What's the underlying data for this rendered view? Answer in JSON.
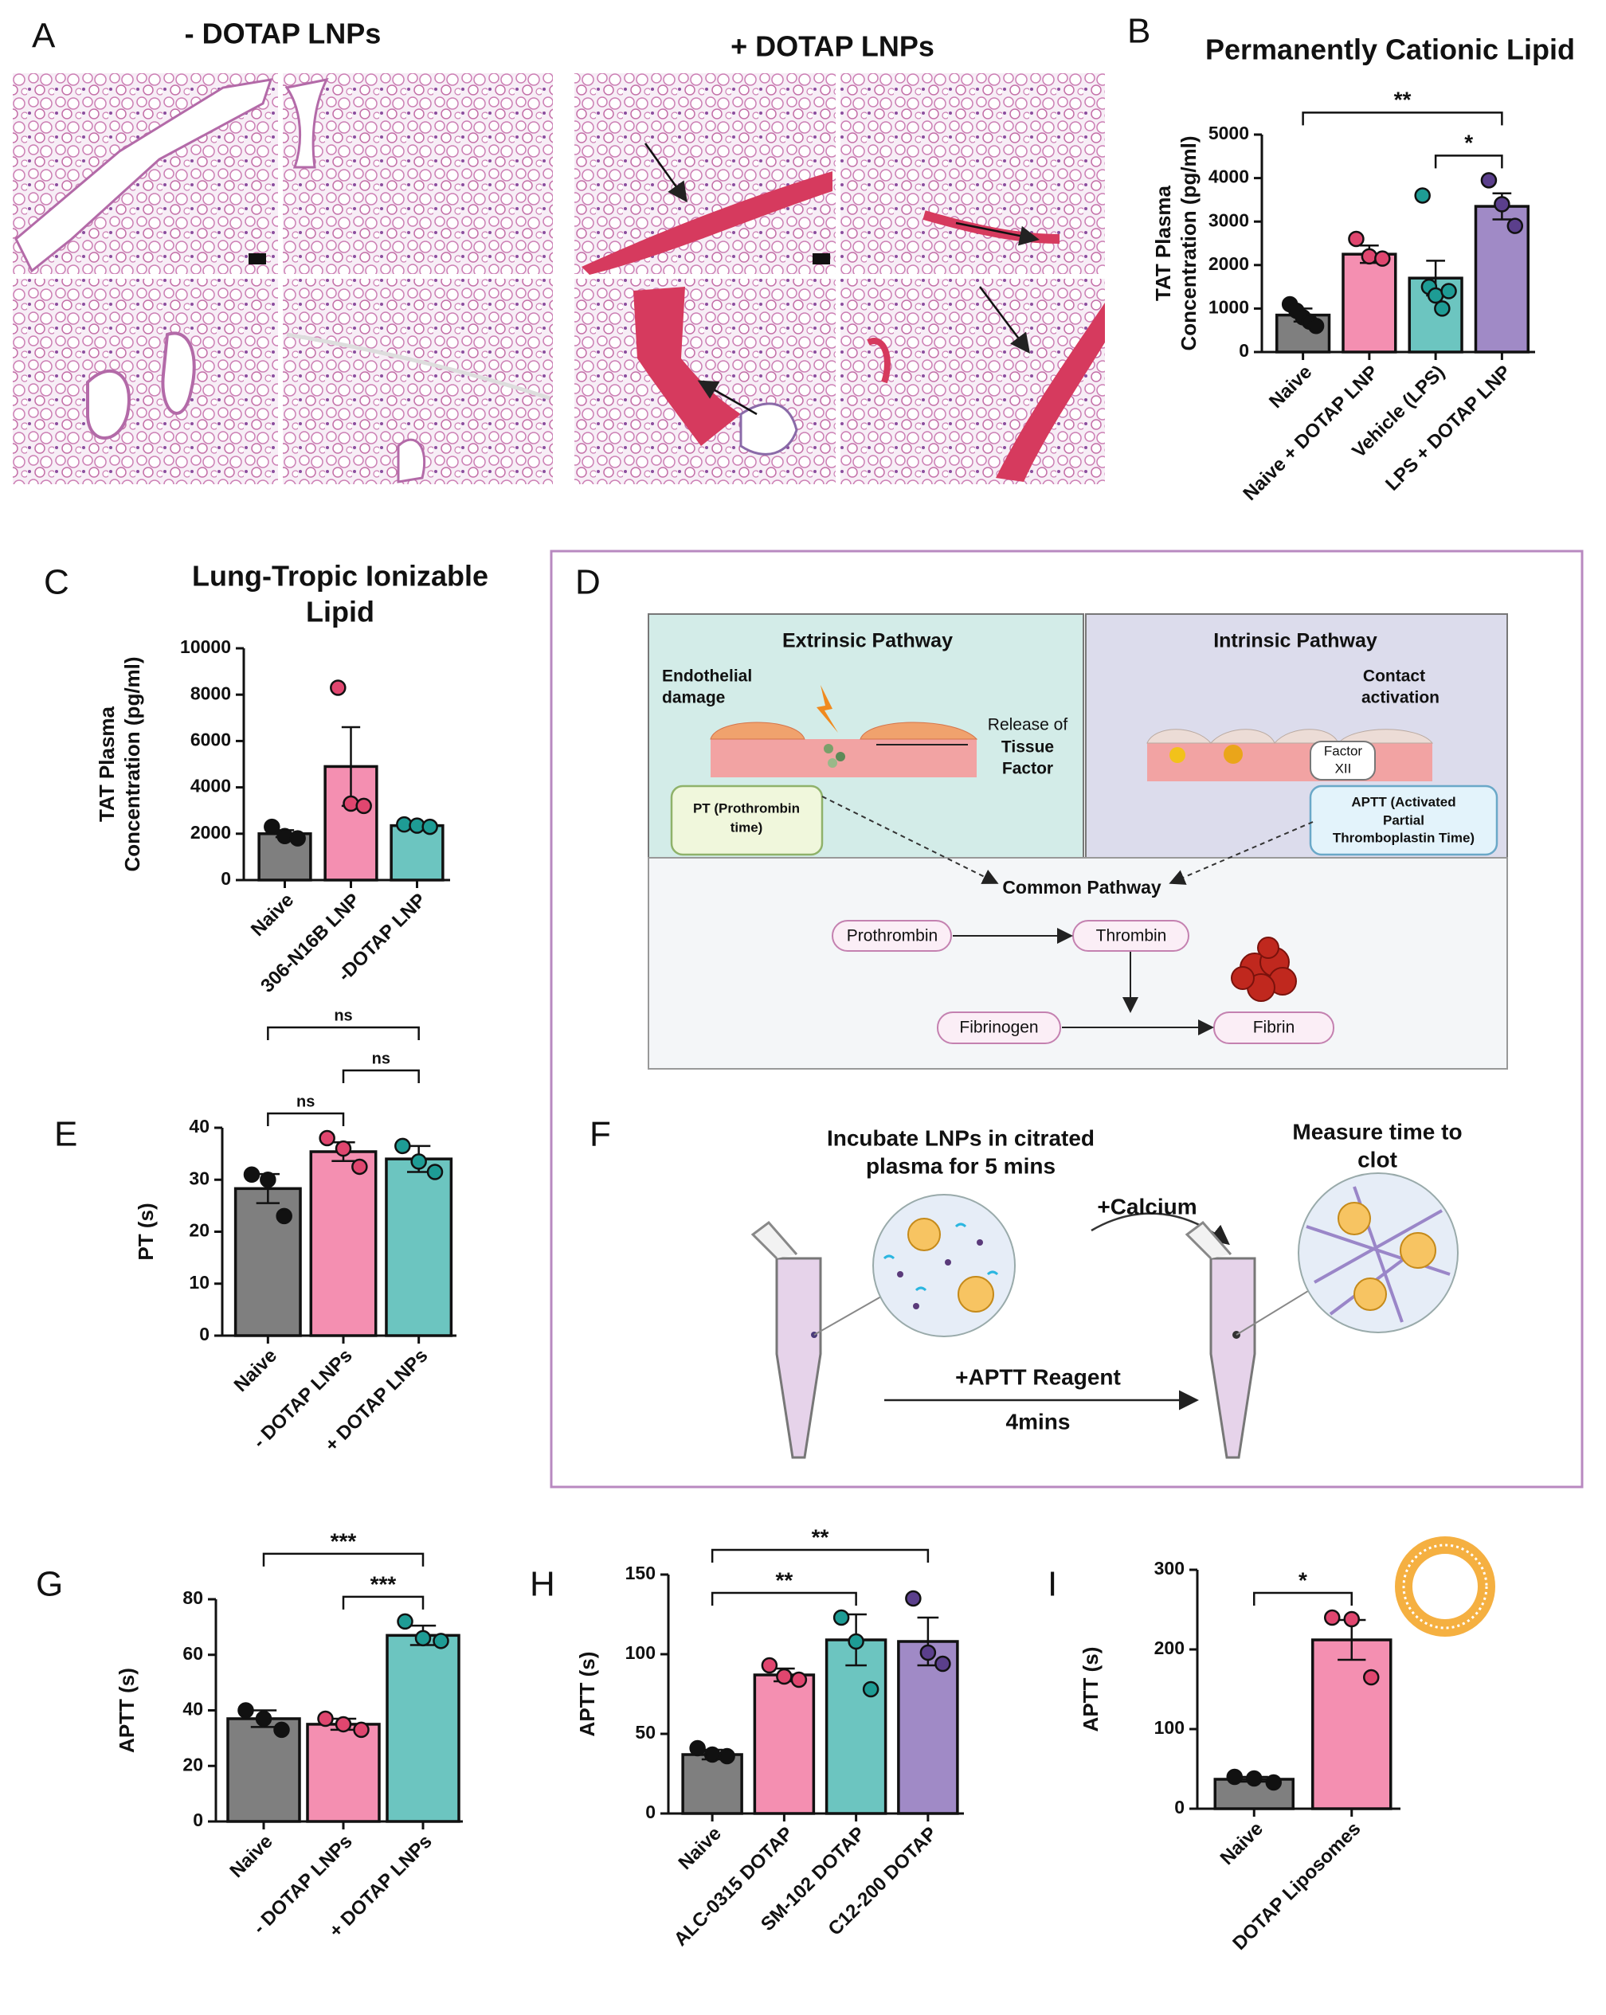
{
  "histology": {
    "panel": "A",
    "titles": [
      "- DOTAP LNPs",
      "+ DOTAP LNPs"
    ]
  },
  "pathway_diagram": {
    "panel": "D",
    "extrinsic": {
      "title": "Extrinsic Pathway",
      "damage": [
        "Endothelial",
        "damage"
      ],
      "release": [
        "Release of",
        "Tissue",
        "Factor"
      ],
      "test": [
        "PT (Prothrombin",
        "time)"
      ]
    },
    "intrinsic": {
      "title": "Intrinsic Pathway",
      "activation": [
        "Contact",
        "activation"
      ],
      "factor": [
        "Factor",
        "XII"
      ],
      "test": [
        "APTT (Activated",
        "Partial",
        "Thromboplastin Time)"
      ]
    },
    "common": {
      "title": "Common Pathway",
      "nodes": [
        "Prothrombin",
        "Thrombin",
        "Fibrinogen",
        "Fibrin"
      ]
    }
  },
  "assay_diagram": {
    "panel": "F",
    "step1": [
      "Incubate LNPs in citrated",
      "plasma for 5 mins"
    ],
    "calcium": "+Calcium",
    "reagent": "+APTT Reagent",
    "time": "4mins",
    "step2": [
      "Measure time to",
      "clot"
    ]
  },
  "chart_data": [
    {
      "type": "bar",
      "panel": "B",
      "title": [
        "Permanently Cationic Lipid"
      ],
      "ylabel": [
        "TAT Plasma",
        "Concentration (pg/ml)"
      ],
      "categories": [
        "Naive",
        "Naive + DOTAP LNP",
        "Vehicle (LPS)",
        "LPS + DOTAP LNP"
      ],
      "values": [
        850,
        2250,
        1700,
        3350
      ],
      "errors": [
        150,
        200,
        400,
        300
      ],
      "points": [
        [
          1100,
          950,
          800,
          700,
          600
        ],
        [
          2600,
          2200,
          2150
        ],
        [
          3600,
          1500,
          1300,
          1000,
          1400
        ],
        [
          3950,
          3400,
          2900
        ]
      ],
      "colors": [
        "#7f7f7f",
        "#f48fb1",
        "#6cc5c0",
        "#a08ac6"
      ],
      "point_colors": [
        "#111111",
        "#e0466f",
        "#1e9c95",
        "#5b3f8c"
      ],
      "ylim": [
        0,
        5000
      ],
      "yticks": [
        0,
        1000,
        2000,
        3000,
        4000,
        5000
      ],
      "annotations": [
        {
          "label": "*",
          "from": 2,
          "to": 3
        },
        {
          "label": "**",
          "from": 0,
          "to": 3
        }
      ]
    },
    {
      "type": "bar",
      "panel": "C",
      "title": [
        "Lung-Tropic Ionizable",
        "Lipid"
      ],
      "ylabel": [
        "TAT Plasma",
        "Concentration (pg/ml)"
      ],
      "categories": [
        "Naive",
        "306-N16B LNP",
        "-DOTAP LNP"
      ],
      "values": [
        2000,
        4900,
        2350
      ],
      "errors": [
        150,
        1700,
        80
      ],
      "points": [
        [
          2300,
          1900,
          1800
        ],
        [
          8300,
          3300,
          3200
        ],
        [
          2400,
          2350,
          2300
        ]
      ],
      "colors": [
        "#7f7f7f",
        "#f48fb1",
        "#6cc5c0"
      ],
      "point_colors": [
        "#111111",
        "#e0466f",
        "#1e9c95"
      ],
      "ylim": [
        0,
        10000
      ],
      "yticks": [
        0,
        2000,
        4000,
        6000,
        8000,
        10000
      ],
      "annotations": []
    },
    {
      "type": "bar",
      "panel": "E",
      "title": [],
      "ylabel": [
        "PT (s)"
      ],
      "categories": [
        "Naive",
        "- DOTAP LNPs",
        "+ DOTAP LNPs"
      ],
      "values": [
        28.3,
        35.4,
        34
      ],
      "errors": [
        2.8,
        1.8,
        2.5
      ],
      "points": [
        [
          31,
          30,
          23
        ],
        [
          38,
          36,
          32.5
        ],
        [
          36.5,
          33.5,
          31.5
        ]
      ],
      "colors": [
        "#7f7f7f",
        "#f48fb1",
        "#6cc5c0"
      ],
      "point_colors": [
        "#111111",
        "#e0466f",
        "#1e9c95"
      ],
      "ylim": [
        0,
        40
      ],
      "yticks": [
        0,
        10,
        20,
        30,
        40
      ],
      "annotations": [
        {
          "label": "ns",
          "from": 0,
          "to": 1
        },
        {
          "label": "ns",
          "from": 1,
          "to": 2
        },
        {
          "label": "ns",
          "from": 0,
          "to": 2
        }
      ]
    },
    {
      "type": "bar",
      "panel": "G",
      "title": [],
      "ylabel": [
        "APTT (s)"
      ],
      "categories": [
        "Naive",
        "- DOTAP LNPs",
        "+ DOTAP LNPs"
      ],
      "values": [
        37,
        35,
        67
      ],
      "errors": [
        3,
        2,
        3.5
      ],
      "points": [
        [
          40,
          37,
          33
        ],
        [
          37,
          35,
          33
        ],
        [
          72,
          66,
          65
        ]
      ],
      "colors": [
        "#7f7f7f",
        "#f48fb1",
        "#6cc5c0"
      ],
      "point_colors": [
        "#111111",
        "#e0466f",
        "#1e9c95"
      ],
      "ylim": [
        0,
        80
      ],
      "yticks": [
        0,
        20,
        40,
        60,
        80
      ],
      "annotations": [
        {
          "label": "***",
          "from": 1,
          "to": 2
        },
        {
          "label": "***",
          "from": 0,
          "to": 2
        }
      ]
    },
    {
      "type": "bar",
      "panel": "H",
      "title": [],
      "ylabel": [
        "APTT (s)"
      ],
      "categories": [
        "Naive",
        "ALC-0315 DOTAP",
        "SM-102 DOTAP",
        "C12-200 DOTAP"
      ],
      "values": [
        37,
        87,
        109,
        108
      ],
      "errors": [
        3,
        4,
        16,
        15
      ],
      "points": [
        [
          41,
          37,
          36
        ],
        [
          93,
          86,
          84
        ],
        [
          123,
          108,
          78
        ],
        [
          135,
          101,
          94
        ]
      ],
      "colors": [
        "#7f7f7f",
        "#f48fb1",
        "#6cc5c0",
        "#a08ac6"
      ],
      "point_colors": [
        "#111111",
        "#e0466f",
        "#1e9c95",
        "#5b3f8c"
      ],
      "ylim": [
        0,
        150
      ],
      "yticks": [
        0,
        50,
        100,
        150
      ],
      "annotations": [
        {
          "label": "**",
          "from": 0,
          "to": 2
        },
        {
          "label": "**",
          "from": 0,
          "to": 3
        }
      ]
    },
    {
      "type": "bar",
      "panel": "I",
      "title": [],
      "ylabel": [
        "APTT (s)"
      ],
      "categories": [
        "Naive",
        "DOTAP Liposomes"
      ],
      "values": [
        37,
        212
      ],
      "errors": [
        3,
        25
      ],
      "points": [
        [
          40,
          38,
          33
        ],
        [
          240,
          238,
          165
        ]
      ],
      "colors": [
        "#7f7f7f",
        "#f48fb1"
      ],
      "point_colors": [
        "#111111",
        "#e0466f"
      ],
      "ylim": [
        0,
        300
      ],
      "yticks": [
        0,
        100,
        200,
        300
      ],
      "annotations": [
        {
          "label": "*",
          "from": 0,
          "to": 1
        }
      ]
    }
  ]
}
